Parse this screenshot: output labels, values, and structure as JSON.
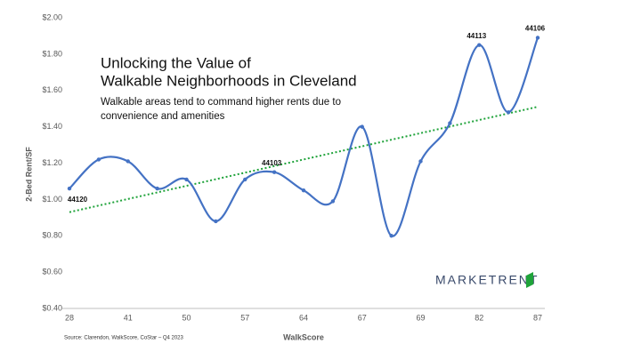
{
  "chart_data": {
    "type": "line",
    "title": [
      "Unlocking the Value of",
      "Walkable Neighborhoods in Cleveland"
    ],
    "subtitle": [
      "Walkable areas tend to command higher rents due to",
      "convenience and amenities"
    ],
    "x_label": "WalkScore",
    "y_label": "2-Bed Rent/SF",
    "source": "Source: Clarendon, WalkScore, CoStar – Q4 2023",
    "logo": "MARKETRENT",
    "categories": [
      "28",
      null,
      "41",
      null,
      "50",
      null,
      "57",
      null,
      "64",
      null,
      "67",
      null,
      "69",
      null,
      "82",
      null,
      "87"
    ],
    "values": [
      1.06,
      1.22,
      1.21,
      1.06,
      1.11,
      0.88,
      1.11,
      1.15,
      1.05,
      0.99,
      1.4,
      0.8,
      1.21,
      1.42,
      1.85,
      1.48,
      1.89
    ],
    "color": "#4472c4",
    "smooth": true,
    "point_labels": [
      {
        "index": 0,
        "text": "44120"
      },
      {
        "index": 7,
        "text": "44103"
      },
      {
        "index": 14,
        "text": "44113"
      },
      {
        "index": 16,
        "text": "44106"
      }
    ],
    "trend": {
      "color": "#1fa33a",
      "values": [
        0.93,
        1.51
      ]
    },
    "ylim": [
      0.4,
      2.0
    ],
    "yticks": [
      {
        "value": 0.4,
        "label": "$0.40"
      },
      {
        "value": 0.6,
        "label": "$0.60"
      },
      {
        "value": 0.8,
        "label": "$0.80"
      },
      {
        "value": 1.0,
        "label": "$1.00"
      },
      {
        "value": 1.2,
        "label": "$1.20"
      },
      {
        "value": 1.4,
        "label": "$1.40"
      },
      {
        "value": 1.6,
        "label": "$1.60"
      },
      {
        "value": 1.8,
        "label": "$1.80"
      },
      {
        "value": 2.0,
        "label": "$2.00"
      }
    ],
    "grid": false
  }
}
